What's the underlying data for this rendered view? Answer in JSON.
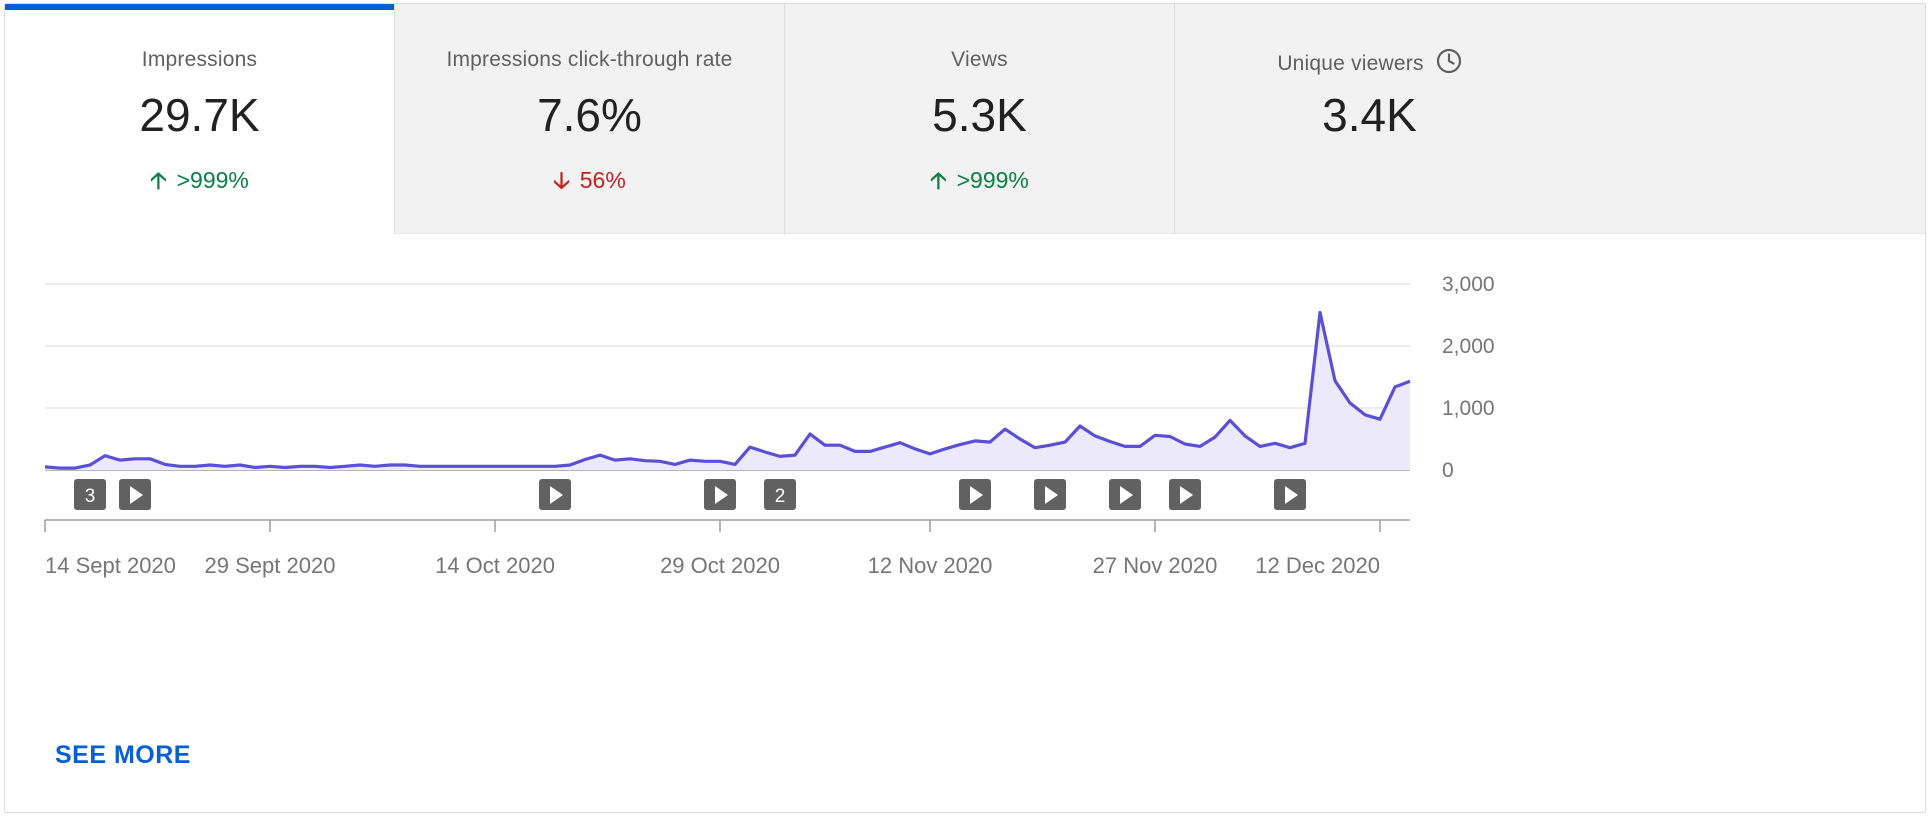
{
  "metrics": [
    {
      "label": "Impressions",
      "value": "29.7K",
      "delta": ">999%",
      "direction": "up",
      "active": true
    },
    {
      "label": "Impressions click-through rate",
      "value": "7.6%",
      "delta": "56%",
      "direction": "down",
      "active": false
    },
    {
      "label": "Views",
      "value": "5.3K",
      "delta": ">999%",
      "direction": "up",
      "active": false
    },
    {
      "label": "Unique viewers",
      "value": "3.4K",
      "delta": "",
      "direction": "none",
      "active": false,
      "icon": "clock-icon"
    }
  ],
  "colors": {
    "accent": "#065fd4",
    "line": "#5a4fd6",
    "area": "#ece9fb",
    "up": "#0b8043",
    "down": "#c5221f"
  },
  "chart_data": {
    "type": "area",
    "start_date": "2020-09-14",
    "y_ticks": [
      "0",
      "1,000",
      "2,000",
      "3,000"
    ],
    "ylim": [
      0,
      3000
    ],
    "x_tick_labels": [
      {
        "label": "14 Sept 2020",
        "day": 0
      },
      {
        "label": "29 Sept 2020",
        "day": 15
      },
      {
        "label": "14 Oct 2020",
        "day": 30
      },
      {
        "label": "29 Oct 2020",
        "day": 45
      },
      {
        "label": "12 Nov 2020",
        "day": 59
      },
      {
        "label": "27 Nov 2020",
        "day": 74
      },
      {
        "label": "12 Dec 2020",
        "day": 89
      }
    ],
    "values": [
      50,
      30,
      30,
      80,
      230,
      160,
      180,
      180,
      90,
      60,
      60,
      80,
      60,
      80,
      40,
      60,
      40,
      60,
      60,
      40,
      60,
      80,
      60,
      80,
      80,
      60,
      60,
      60,
      60,
      60,
      60,
      60,
      60,
      60,
      60,
      80,
      170,
      240,
      160,
      180,
      150,
      140,
      90,
      160,
      140,
      140,
      90,
      370,
      290,
      220,
      240,
      580,
      400,
      400,
      300,
      300,
      370,
      440,
      340,
      260,
      340,
      410,
      470,
      450,
      660,
      500,
      360,
      400,
      450,
      710,
      550,
      460,
      380,
      380,
      560,
      540,
      420,
      380,
      530,
      800,
      550,
      380,
      430,
      360,
      430,
      2540,
      1440,
      1080,
      890,
      820,
      1340,
      1430
    ],
    "video_markers": [
      {
        "day": 3,
        "count": "3"
      },
      {
        "day": 6,
        "count": ""
      },
      {
        "day": 34,
        "count": ""
      },
      {
        "day": 45,
        "count": ""
      },
      {
        "day": 49,
        "count": "2"
      },
      {
        "day": 62,
        "count": ""
      },
      {
        "day": 67,
        "count": ""
      },
      {
        "day": 72,
        "count": ""
      },
      {
        "day": 76,
        "count": ""
      },
      {
        "day": 83,
        "count": ""
      }
    ]
  },
  "see_more": "SEE MORE"
}
